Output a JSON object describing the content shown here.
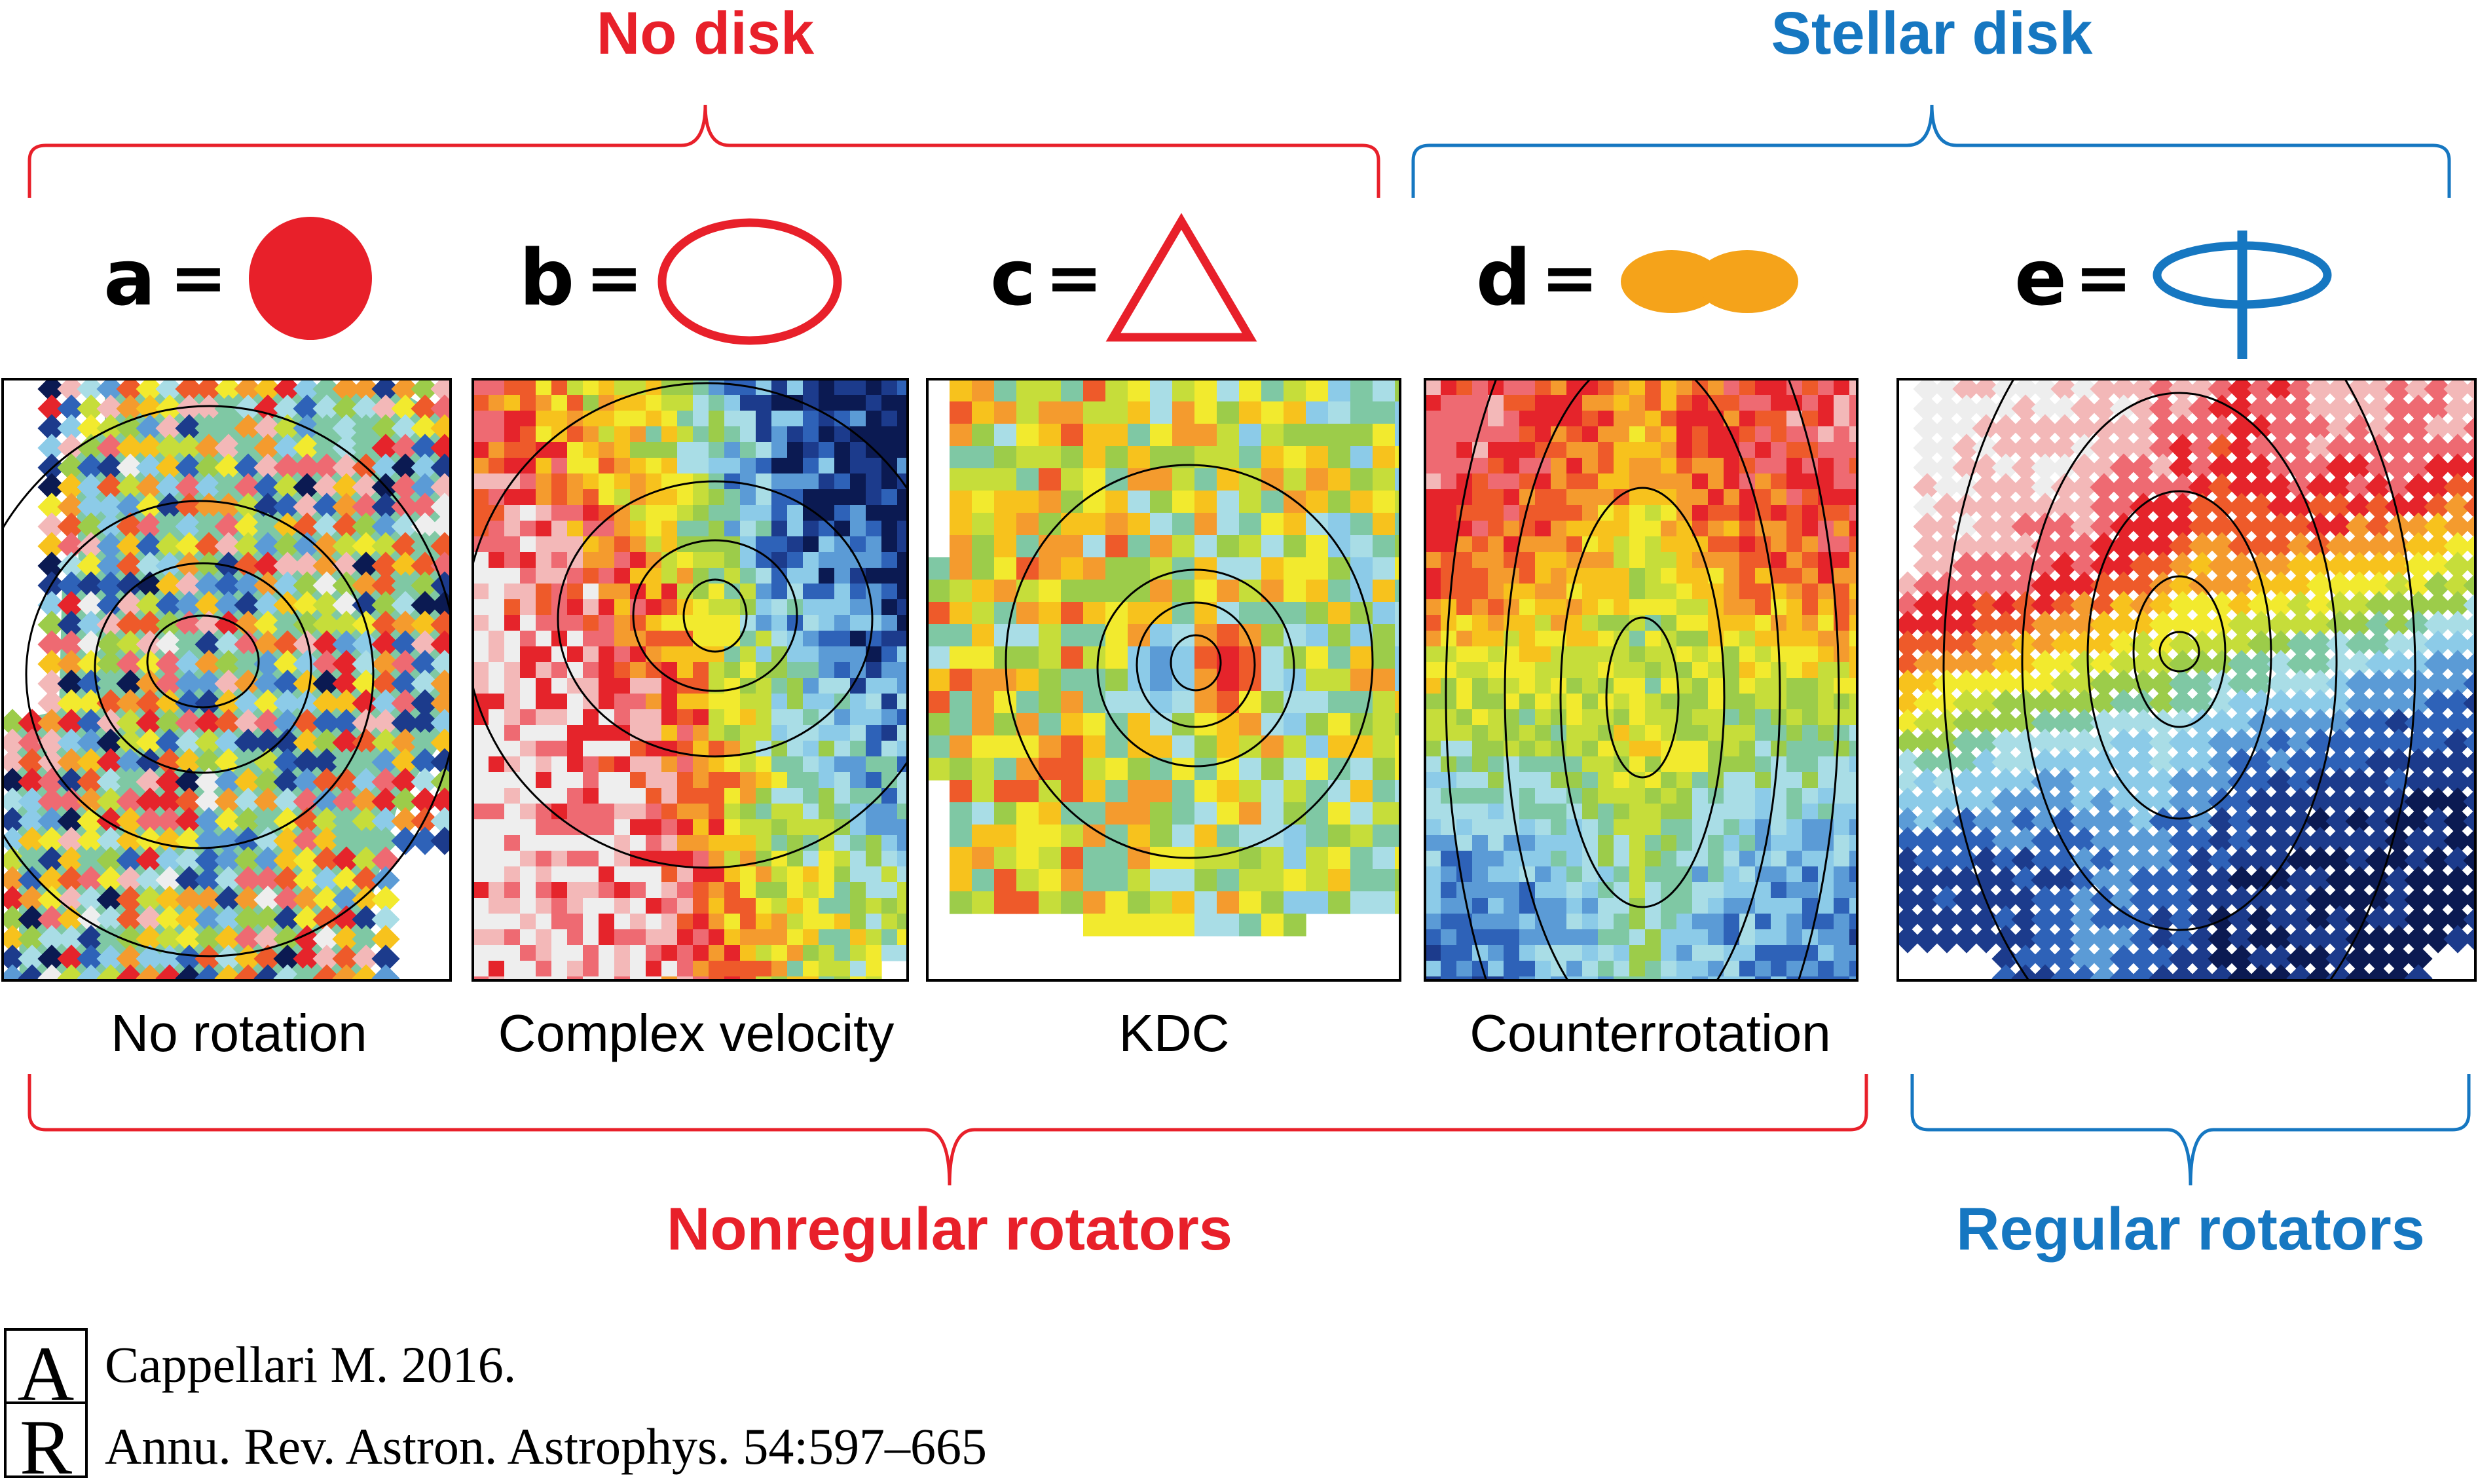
{
  "colors": {
    "red": "#e8202a",
    "blue": "#1677c1",
    "orange": "#f5a31a",
    "black": "#000000"
  },
  "top_groups": {
    "no_disk": "No disk",
    "stellar_disk": "Stellar disk"
  },
  "bottom_groups": {
    "nonregular": "Nonregular rotators",
    "regular": "Regular rotators"
  },
  "panels": [
    {
      "letter": "a",
      "equals": "=",
      "symbol": "filled-circle-icon",
      "label": "No rotation"
    },
    {
      "letter": "b",
      "equals": "=",
      "symbol": "open-ellipse-icon",
      "label": "Complex velocity"
    },
    {
      "letter": "c",
      "equals": "=",
      "symbol": "open-triangle-icon",
      "label": "KDC"
    },
    {
      "letter": "d",
      "equals": "=",
      "symbol": "double-lobe-icon",
      "label": "Counterrotation"
    },
    {
      "letter": "e",
      "equals": "=",
      "symbol": "disk-with-axis-icon",
      "label": ""
    }
  ],
  "citation": {
    "line1": "Cappellari M. 2016.",
    "line2": "Annu. Rev. Astron. Astrophys. 54:597–665"
  },
  "logo": {
    "letter_a": "A",
    "letter_r": "R"
  }
}
